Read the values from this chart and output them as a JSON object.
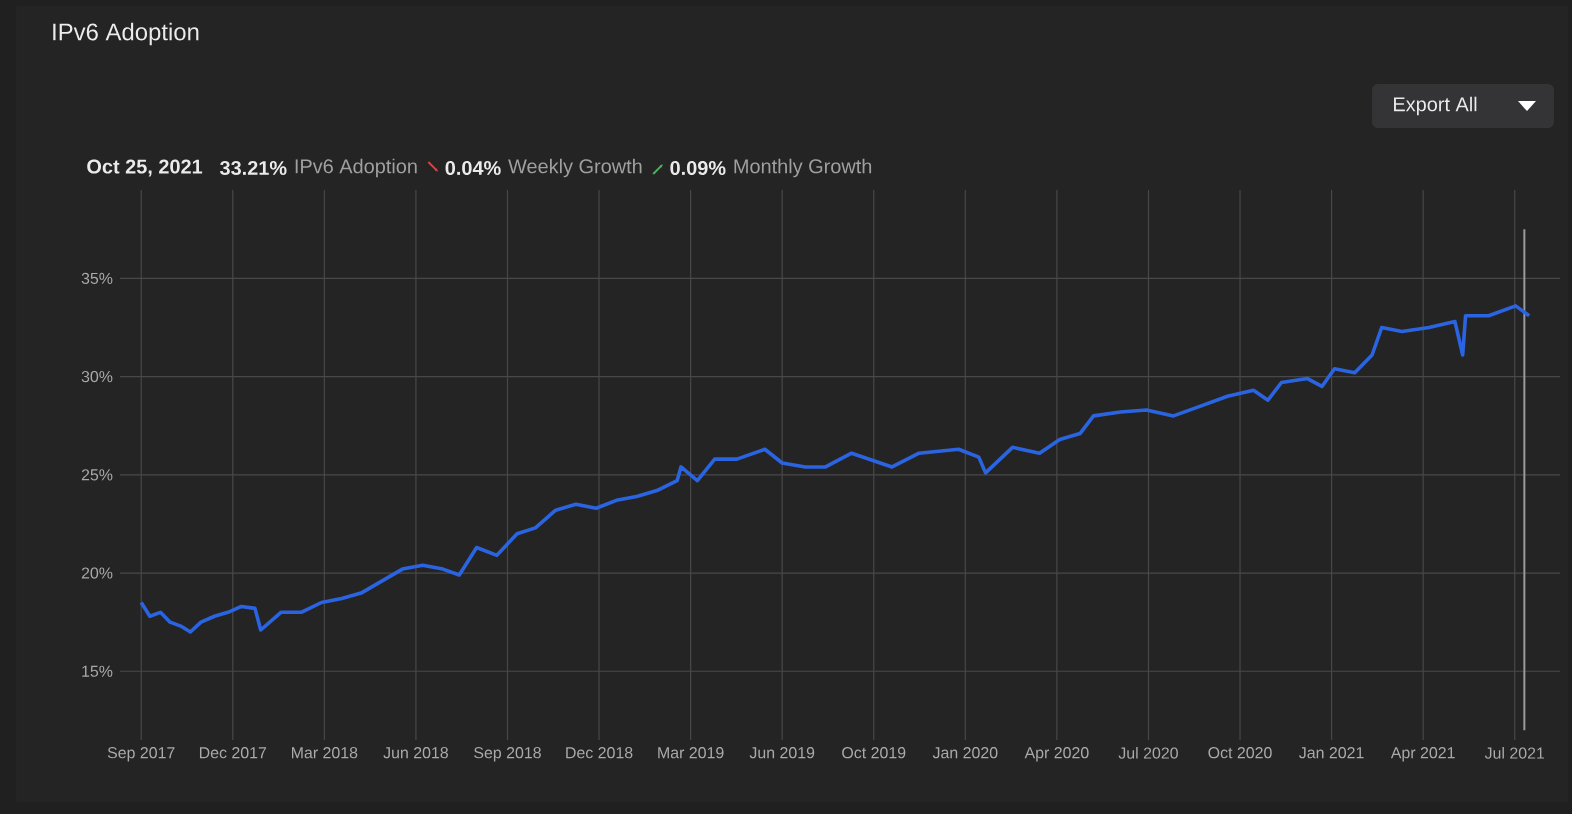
{
  "chart_data": {
    "type": "line",
    "title": "IPv6 Adoption",
    "annotations": [
      "Oct 25, 2021",
      "33.21%",
      "IPv6 Adoption",
      "0.04%",
      "Weekly Growth",
      "0.09%",
      "Monthly Growth",
      "Export All"
    ],
    "series": [
      {
        "color": "#2a64e0",
        "x": [
          "2017-09-01",
          "2017-09-10",
          "2017-09-21",
          "2017-10-01",
          "2017-10-12",
          "2017-10-22",
          "2017-11-02",
          "2017-11-16",
          "2017-11-30",
          "2017-12-14",
          "2017-12-28",
          "2018-01-03",
          "2018-01-24",
          "2018-02-14",
          "2018-03-07",
          "2018-03-28",
          "2018-04-18",
          "2018-05-09",
          "2018-05-30",
          "2018-06-20",
          "2018-07-11",
          "2018-07-28",
          "2018-08-15",
          "2018-09-05",
          "2018-09-26",
          "2018-10-15",
          "2018-11-05",
          "2018-11-26",
          "2018-12-17",
          "2019-01-07",
          "2019-01-28",
          "2019-02-18",
          "2019-03-11",
          "2019-03-15",
          "2019-04-01",
          "2019-04-19",
          "2019-05-12",
          "2019-06-10",
          "2019-06-28",
          "2019-07-22",
          "2019-08-12",
          "2019-09-08",
          "2019-10-20",
          "2019-11-17",
          "2019-12-28",
          "2020-01-18",
          "2020-01-25",
          "2020-02-22",
          "2020-03-21",
          "2020-04-11",
          "2020-05-02",
          "2020-05-16",
          "2020-06-13",
          "2020-07-10",
          "2020-08-07",
          "2020-09-04",
          "2020-10-02",
          "2020-10-29",
          "2020-11-13",
          "2020-11-27",
          "2020-12-24",
          "2021-01-08",
          "2021-01-21",
          "2021-02-11",
          "2021-03-01",
          "2021-03-11",
          "2021-04-01",
          "2021-04-29",
          "2021-05-26",
          "2021-06-03",
          "2021-06-06",
          "2021-06-30",
          "2021-07-28",
          "2021-08-11"
        ],
        "values": [
          18.5,
          17.8,
          18.0,
          17.5,
          17.3,
          17.0,
          17.5,
          17.8,
          18.0,
          18.3,
          18.2,
          17.1,
          18.0,
          18.0,
          18.5,
          18.7,
          19.0,
          19.6,
          20.2,
          20.4,
          20.2,
          19.9,
          21.3,
          20.9,
          22.0,
          22.3,
          23.2,
          23.5,
          23.3,
          23.7,
          23.9,
          24.2,
          24.7,
          25.4,
          24.7,
          25.8,
          25.8,
          26.3,
          25.6,
          25.4,
          25.4,
          26.1,
          25.4,
          26.1,
          26.3,
          25.9,
          25.1,
          26.4,
          26.1,
          26.8,
          27.1,
          28.0,
          28.2,
          28.3,
          28.0,
          28.5,
          29.0,
          29.3,
          28.8,
          29.7,
          29.9,
          29.5,
          30.4,
          30.2,
          31.1,
          32.5,
          32.3,
          32.5,
          32.8,
          31.1,
          33.1,
          33.1,
          33.6,
          33.1
        ]
      }
    ],
    "xlim": [
      "2017-08-10",
      "2021-09-12"
    ],
    "xticks": [
      {
        "value": "2017-09-01",
        "label": "Sep 2017"
      },
      {
        "value": "2017-12-05",
        "label": "Dec 2017"
      },
      {
        "value": "2018-03-10",
        "label": "Mar 2018"
      },
      {
        "value": "2018-06-13",
        "label": "Jun 2018"
      },
      {
        "value": "2018-09-16",
        "label": "Sep 2018"
      },
      {
        "value": "2018-12-20",
        "label": "Dec 2018"
      },
      {
        "value": "2019-03-25",
        "label": "Mar 2019"
      },
      {
        "value": "2019-06-28",
        "label": "Jun 2019"
      },
      {
        "value": "2019-10-01",
        "label": "Oct 2019"
      },
      {
        "value": "2020-01-04",
        "label": "Jan 2020"
      },
      {
        "value": "2020-04-08",
        "label": "Apr 2020"
      },
      {
        "value": "2020-07-12",
        "label": "Jul 2020"
      },
      {
        "value": "2020-10-15",
        "label": "Oct 2020"
      },
      {
        "value": "2021-01-18",
        "label": "Jan 2021"
      },
      {
        "value": "2021-04-23",
        "label": "Apr 2021"
      },
      {
        "value": "2021-07-27",
        "label": "Jul 2021"
      }
    ],
    "ylim": [
      11.5,
      39.5
    ],
    "yticks": [
      {
        "value": 15,
        "label": "15%"
      },
      {
        "value": 20,
        "label": "20%"
      },
      {
        "value": 25,
        "label": "25%"
      },
      {
        "value": 30,
        "label": "30%"
      },
      {
        "value": 35,
        "label": "35%"
      }
    ],
    "grid": true,
    "line_style": "solid",
    "ref_lines": [
      {
        "axis": "x",
        "value": "2021-08-06",
        "color": "#9a9a9a"
      }
    ]
  }
}
